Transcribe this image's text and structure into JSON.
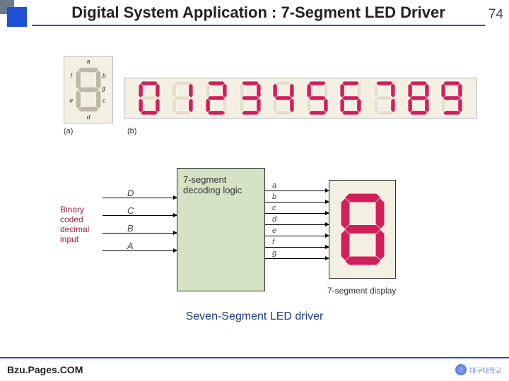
{
  "header": {
    "title": "Digital System Application : 7-Segment LED Driver",
    "slide_number": "74"
  },
  "figure_a": {
    "label": "(a)",
    "segments": [
      "a",
      "b",
      "c",
      "d",
      "e",
      "f",
      "g"
    ],
    "seg_off_color": "#bfb8a8",
    "box_bg": "#f3efe2",
    "seg_label_color": "#333333"
  },
  "figure_b": {
    "label": "(b)",
    "box_bg": "#f3efe2",
    "seg_on_color": "#d11f5a",
    "seg_off_color": "#e6dfc9",
    "digits": [
      {
        "value": "0",
        "mask": "1111110"
      },
      {
        "value": "1",
        "mask": "0110000"
      },
      {
        "value": "2",
        "mask": "1101101"
      },
      {
        "value": "3",
        "mask": "1111001"
      },
      {
        "value": "4",
        "mask": "0110011"
      },
      {
        "value": "5",
        "mask": "1011011"
      },
      {
        "value": "6",
        "mask": "1011111"
      },
      {
        "value": "7",
        "mask": "1110000"
      },
      {
        "value": "8",
        "mask": "1111111"
      },
      {
        "value": "9",
        "mask": "1111011"
      }
    ]
  },
  "block": {
    "input_label": "Binary coded decimal input",
    "input_label_color": "#a02040",
    "inputs": [
      "D",
      "C",
      "B",
      "A"
    ],
    "decoder_label": "7-segment decoding logic",
    "decoder_bg": "#d5e2c4",
    "outputs": [
      "a",
      "b",
      "c",
      "d",
      "e",
      "f",
      "g"
    ],
    "display_label": "7-segment display",
    "display_bg": "#f3efe2",
    "display_seg_on_color": "#d11f5a",
    "display_seg_off_color": "#e9e0c8",
    "display_mask": "1111111"
  },
  "caption": {
    "text": "Seven-Segment LED driver",
    "color": "#1a3a8a"
  },
  "footer": {
    "left": "Bzu.Pages.COM",
    "right": "대구대학교"
  },
  "colors": {
    "accent": "#1d50d4"
  }
}
